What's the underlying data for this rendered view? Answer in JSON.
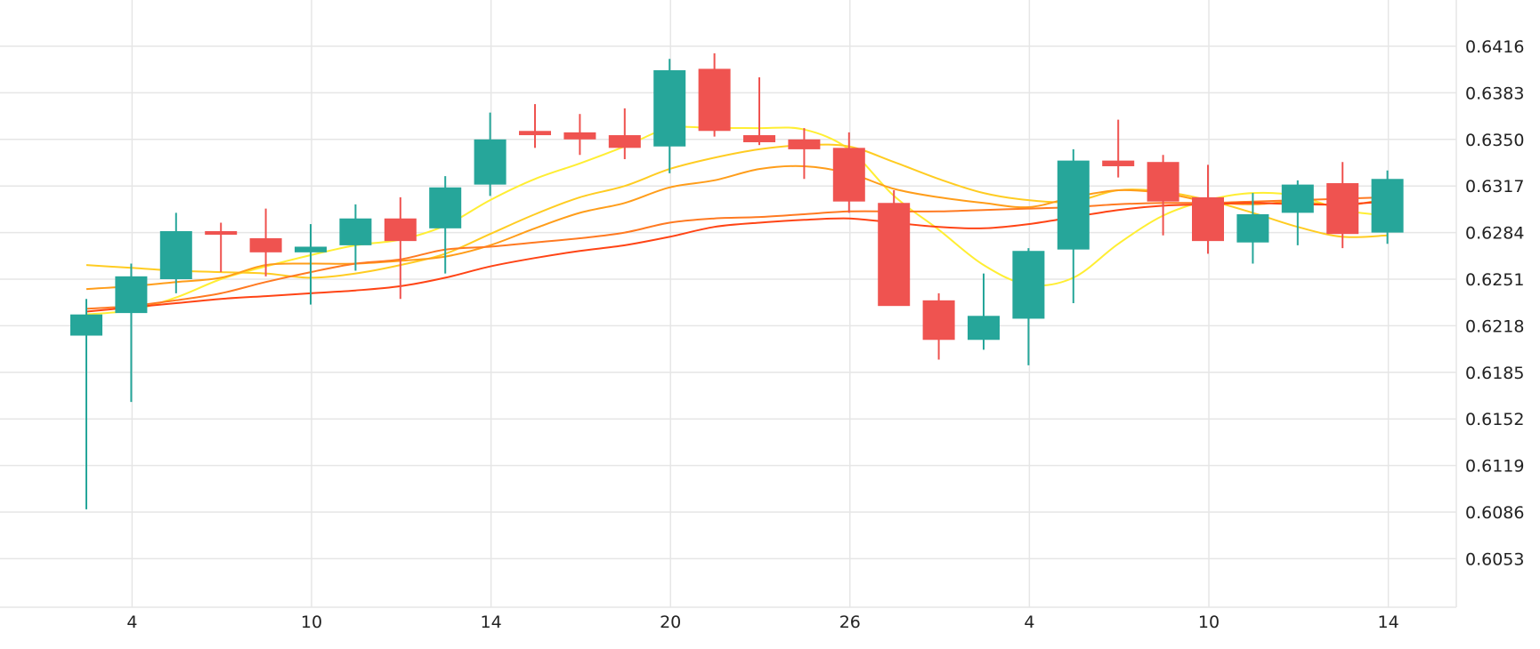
{
  "chart_data": {
    "type": "candlestick",
    "y_axis": {
      "position": "right",
      "ticks": [
        "0.6416",
        "0.6383",
        "0.6350",
        "0.6317",
        "0.6284",
        "0.6251",
        "0.6218",
        "0.6185",
        "0.6152",
        "0.6119",
        "0.6086",
        "0.6053"
      ],
      "range": [
        0.60203,
        0.64584
      ]
    },
    "x_axis": {
      "ticks": [
        {
          "label": "4",
          "index": 1
        },
        {
          "label": "10",
          "index": 5
        },
        {
          "label": "14",
          "index": 9
        },
        {
          "label": "20",
          "index": 13
        },
        {
          "label": "26",
          "index": 17
        },
        {
          "label": "4",
          "index": 21
        },
        {
          "label": "10",
          "index": 25
        },
        {
          "label": "14",
          "index": 29
        }
      ]
    },
    "grid": true,
    "colors": {
      "up": "#26a69a",
      "down": "#ef5350"
    },
    "candles": [
      {
        "open": 0.6211,
        "high": 0.6237,
        "low": 0.6088,
        "close": 0.6226
      },
      {
        "open": 0.6227,
        "high": 0.6262,
        "low": 0.6164,
        "close": 0.6253
      },
      {
        "open": 0.6251,
        "high": 0.6298,
        "low": 0.6241,
        "close": 0.6285
      },
      {
        "open": 0.6285,
        "high": 0.6291,
        "low": 0.6256,
        "close": 0.6283
      },
      {
        "open": 0.628,
        "high": 0.6301,
        "low": 0.6253,
        "close": 0.627
      },
      {
        "open": 0.627,
        "high": 0.629,
        "low": 0.6233,
        "close": 0.6274
      },
      {
        "open": 0.6275,
        "high": 0.6304,
        "low": 0.6257,
        "close": 0.6294
      },
      {
        "open": 0.6294,
        "high": 0.6309,
        "low": 0.6237,
        "close": 0.6278
      },
      {
        "open": 0.6287,
        "high": 0.6324,
        "low": 0.6255,
        "close": 0.6316
      },
      {
        "open": 0.6318,
        "high": 0.6369,
        "low": 0.631,
        "close": 0.635
      },
      {
        "open": 0.6356,
        "high": 0.6375,
        "low": 0.6344,
        "close": 0.6353
      },
      {
        "open": 0.6355,
        "high": 0.6368,
        "low": 0.6339,
        "close": 0.635
      },
      {
        "open": 0.6353,
        "high": 0.6372,
        "low": 0.6336,
        "close": 0.6344
      },
      {
        "open": 0.6345,
        "high": 0.6407,
        "low": 0.6326,
        "close": 0.6399
      },
      {
        "open": 0.64,
        "high": 0.6411,
        "low": 0.6352,
        "close": 0.6356
      },
      {
        "open": 0.6353,
        "high": 0.6394,
        "low": 0.6346,
        "close": 0.6348
      },
      {
        "open": 0.635,
        "high": 0.6358,
        "low": 0.6322,
        "close": 0.6343
      },
      {
        "open": 0.6344,
        "high": 0.6355,
        "low": 0.6298,
        "close": 0.6306
      },
      {
        "open": 0.6305,
        "high": 0.6314,
        "low": 0.6233,
        "close": 0.6232
      },
      {
        "open": 0.6236,
        "high": 0.6241,
        "low": 0.6194,
        "close": 0.6208
      },
      {
        "open": 0.6208,
        "high": 0.6255,
        "low": 0.6201,
        "close": 0.6225
      },
      {
        "open": 0.6223,
        "high": 0.6273,
        "low": 0.619,
        "close": 0.6271
      },
      {
        "open": 0.6272,
        "high": 0.6343,
        "low": 0.6234,
        "close": 0.6335
      },
      {
        "open": 0.6335,
        "high": 0.6364,
        "low": 0.6323,
        "close": 0.6331
      },
      {
        "open": 0.6334,
        "high": 0.6339,
        "low": 0.6282,
        "close": 0.6306
      },
      {
        "open": 0.6309,
        "high": 0.6332,
        "low": 0.6269,
        "close": 0.6278
      },
      {
        "open": 0.6277,
        "high": 0.6312,
        "low": 0.6262,
        "close": 0.6297
      },
      {
        "open": 0.6298,
        "high": 0.6321,
        "low": 0.6275,
        "close": 0.6318
      },
      {
        "open": 0.6319,
        "high": 0.6334,
        "low": 0.6273,
        "close": 0.6283
      },
      {
        "open": 0.6284,
        "high": 0.6328,
        "low": 0.6276,
        "close": 0.6322
      }
    ],
    "moving_averages": [
      {
        "color": "#ffee33",
        "values": [
          0.6226,
          0.6229,
          0.6238,
          0.6251,
          0.626,
          0.6268,
          0.6275,
          0.6279,
          0.6289,
          0.6307,
          0.6322,
          0.6333,
          0.6345,
          0.6358,
          0.6358,
          0.6358,
          0.6357,
          0.6343,
          0.631,
          0.6286,
          0.6261,
          0.6247,
          0.6252,
          0.6276,
          0.6296,
          0.6307,
          0.6312,
          0.631,
          0.63,
          0.6296
        ]
      },
      {
        "color": "#ffcc22",
        "values": [
          0.6261,
          0.6259,
          0.6257,
          0.6256,
          0.6255,
          0.6252,
          0.6255,
          0.6261,
          0.6269,
          0.6283,
          0.6297,
          0.6309,
          0.6317,
          0.6329,
          0.6337,
          0.6343,
          0.6346,
          0.6345,
          0.6334,
          0.6322,
          0.6312,
          0.6307,
          0.6306,
          0.6314,
          0.6313,
          0.6307,
          0.6298,
          0.6288,
          0.6281,
          0.6282
        ]
      },
      {
        "color": "#ff9d1a",
        "values": [
          0.6244,
          0.6246,
          0.6249,
          0.6252,
          0.6261,
          0.6262,
          0.6262,
          0.6264,
          0.6267,
          0.6275,
          0.6287,
          0.6298,
          0.6305,
          0.6316,
          0.6321,
          0.6329,
          0.6331,
          0.6326,
          0.6315,
          0.6309,
          0.6305,
          0.6302,
          0.6309,
          0.6314,
          0.6312,
          0.6306,
          0.6304,
          0.6306,
          0.6303,
          0.6308
        ]
      },
      {
        "color": "#ff7a22",
        "values": [
          0.623,
          0.6232,
          0.6236,
          0.6241,
          0.6249,
          0.6256,
          0.6262,
          0.6265,
          0.6272,
          0.6274,
          0.6277,
          0.628,
          0.6284,
          0.6291,
          0.6294,
          0.6295,
          0.6297,
          0.6299,
          0.6299,
          0.6299,
          0.63,
          0.6301,
          0.6302,
          0.6304,
          0.6305,
          0.6305,
          0.6306,
          0.6307,
          0.6308,
          0.6309
        ]
      },
      {
        "color": "#ff4415",
        "values": [
          0.6228,
          0.6231,
          0.6234,
          0.6237,
          0.6239,
          0.6241,
          0.6243,
          0.6246,
          0.6252,
          0.626,
          0.6266,
          0.6271,
          0.6275,
          0.6281,
          0.6288,
          0.6291,
          0.6293,
          0.6294,
          0.6291,
          0.6288,
          0.6287,
          0.629,
          0.6295,
          0.63,
          0.6303,
          0.6304,
          0.6305,
          0.6304,
          0.6304,
          0.6306
        ]
      }
    ]
  }
}
